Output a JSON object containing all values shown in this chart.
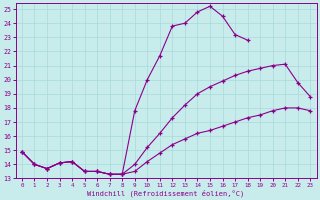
{
  "bg_color": "#c8ecec",
  "line_color": "#8b008b",
  "grid_color": "#a8d8d8",
  "xlabel": "Windchill (Refroidissement éolien,°C)",
  "xlim": [
    -0.5,
    23.5
  ],
  "ylim": [
    13,
    25.4
  ],
  "xticks": [
    0,
    1,
    2,
    3,
    4,
    5,
    6,
    7,
    8,
    9,
    10,
    11,
    12,
    13,
    14,
    15,
    16,
    17,
    18,
    19,
    20,
    21,
    22,
    23
  ],
  "yticks": [
    13,
    14,
    15,
    16,
    17,
    18,
    19,
    20,
    21,
    22,
    23,
    24,
    25
  ],
  "s1_x": [
    0,
    1,
    2,
    3,
    4,
    5,
    6,
    7,
    8,
    9,
    10,
    11,
    12,
    13,
    14,
    15,
    16,
    17,
    18,
    19,
    20,
    21,
    22,
    23
  ],
  "s1_y": [
    14.9,
    14.0,
    13.7,
    14.1,
    14.2,
    13.5,
    13.5,
    13.3,
    13.3,
    13.5,
    14.2,
    14.8,
    15.4,
    15.8,
    16.2,
    16.4,
    16.7,
    17.0,
    17.3,
    17.5,
    17.8,
    18.0,
    18.0,
    17.8
  ],
  "s2_x": [
    0,
    1,
    2,
    3,
    4,
    5,
    6,
    7,
    8,
    9,
    10,
    11,
    12,
    13,
    14,
    15,
    16,
    17,
    18,
    19,
    20,
    21,
    22,
    23
  ],
  "s2_y": [
    14.9,
    14.0,
    13.7,
    14.1,
    14.2,
    13.5,
    13.5,
    13.3,
    13.3,
    14.0,
    15.2,
    16.2,
    17.3,
    18.2,
    19.0,
    19.5,
    19.9,
    20.3,
    20.6,
    20.8,
    21.0,
    21.1,
    19.8,
    18.8
  ],
  "s3_x": [
    0,
    1,
    2,
    3,
    4,
    5,
    6,
    7,
    8,
    9,
    10,
    11,
    12,
    13,
    14,
    15,
    16,
    17,
    18
  ],
  "s3_y": [
    14.9,
    14.0,
    13.7,
    14.1,
    14.2,
    13.5,
    13.5,
    13.3,
    13.3,
    17.8,
    20.0,
    21.7,
    23.8,
    24.0,
    24.8,
    25.2,
    24.5,
    23.2,
    22.8
  ]
}
